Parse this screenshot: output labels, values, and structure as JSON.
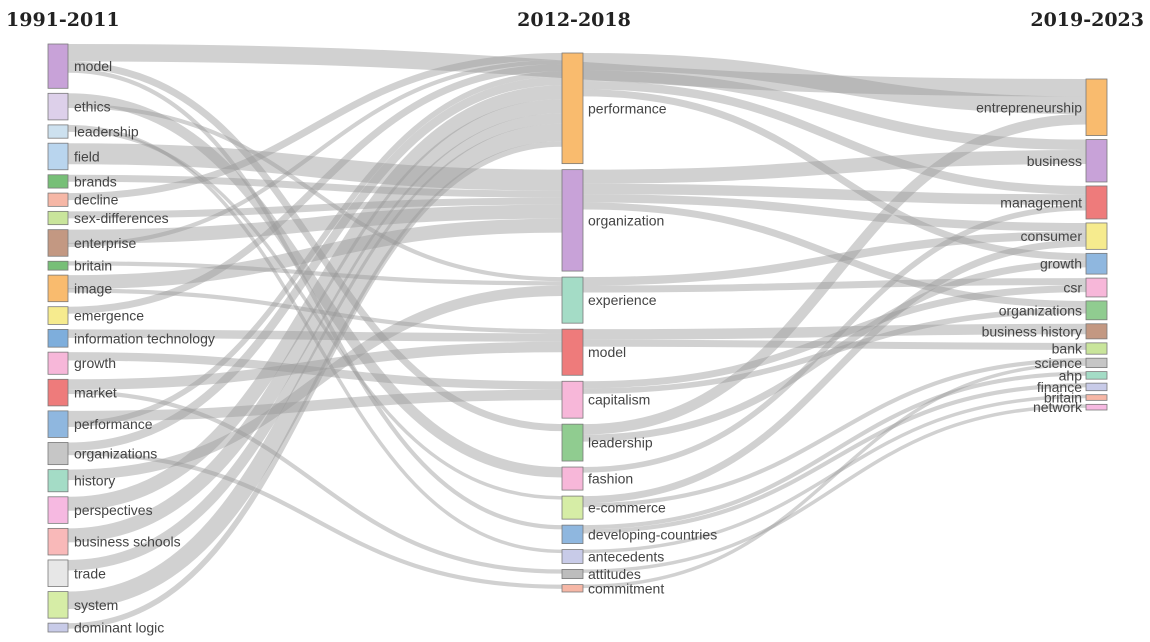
{
  "columns": [
    {
      "title": "1991-2011",
      "nodes": [
        {
          "label": "model",
          "color": "#c8a2d8",
          "weight": 5
        },
        {
          "label": "ethics",
          "color": "#ddd0ea",
          "weight": 3
        },
        {
          "label": "leadership",
          "color": "#cde1ef",
          "weight": 1.5
        },
        {
          "label": "field",
          "color": "#b9d5ee",
          "weight": 3
        },
        {
          "label": "brands",
          "color": "#77bf77",
          "weight": 1.5
        },
        {
          "label": "decline",
          "color": "#f6b7a6",
          "weight": 1.5
        },
        {
          "label": "sex-differences",
          "color": "#c9e59b",
          "weight": 1.5
        },
        {
          "label": "enterprise",
          "color": "#c39882",
          "weight": 3
        },
        {
          "label": "britain",
          "color": "#77bf77",
          "weight": 1
        },
        {
          "label": "image",
          "color": "#f9bb6e",
          "weight": 3
        },
        {
          "label": "emergence",
          "color": "#f6eb8e",
          "weight": 2
        },
        {
          "label": "information technology",
          "color": "#7eaedc",
          "weight": 2
        },
        {
          "label": "growth",
          "color": "#f7b7d9",
          "weight": 2.5
        },
        {
          "label": "market",
          "color": "#ee7b7b",
          "weight": 3
        },
        {
          "label": "performance",
          "color": "#8fb7df",
          "weight": 3
        },
        {
          "label": "organizations",
          "color": "#c6c6c6",
          "weight": 2.5
        },
        {
          "label": "history",
          "color": "#a4dcc6",
          "weight": 2.5
        },
        {
          "label": "perspectives",
          "color": "#f6b9e1",
          "weight": 3
        },
        {
          "label": "business schools",
          "color": "#f9b9b9",
          "weight": 3
        },
        {
          "label": "trade",
          "color": "#e7e7e7",
          "weight": 3
        },
        {
          "label": "system",
          "color": "#d6eda6",
          "weight": 3
        },
        {
          "label": "dominant logic",
          "color": "#c8cbe8",
          "weight": 1
        }
      ]
    },
    {
      "title": "2012-2018",
      "nodes": [
        {
          "label": "performance",
          "color": "#f9bb6e",
          "weight": 12
        },
        {
          "label": "organization",
          "color": "#c8a2d8",
          "weight": 11
        },
        {
          "label": "experience",
          "color": "#a4dcc6",
          "weight": 5
        },
        {
          "label": "model",
          "color": "#ee7b7b",
          "weight": 5
        },
        {
          "label": "capitalism",
          "color": "#f7b7d9",
          "weight": 4
        },
        {
          "label": "leadership",
          "color": "#90cc90",
          "weight": 4
        },
        {
          "label": "fashion",
          "color": "#f7b7d9",
          "weight": 2.5
        },
        {
          "label": "e-commerce",
          "color": "#d6eda6",
          "weight": 2.5
        },
        {
          "label": "developing-countries",
          "color": "#8fb7df",
          "weight": 2
        },
        {
          "label": "antecedents",
          "color": "#c8cbe8",
          "weight": 1.5
        },
        {
          "label": "attitudes",
          "color": "#bdbdbd",
          "weight": 1
        },
        {
          "label": "commitment",
          "color": "#f6b7a6",
          "weight": 0.8
        }
      ]
    },
    {
      "title": "2019-2023",
      "nodes": [
        {
          "label": "entrepreneurship",
          "color": "#f9bb6e",
          "weight": 6
        },
        {
          "label": "business",
          "color": "#c8a2d8",
          "weight": 4.5
        },
        {
          "label": "management",
          "color": "#ee7b7b",
          "weight": 3.5
        },
        {
          "label": "consumer",
          "color": "#f6eb8e",
          "weight": 2.8
        },
        {
          "label": "growth",
          "color": "#8fb7df",
          "weight": 2.2
        },
        {
          "label": "csr",
          "color": "#f7b7d9",
          "weight": 2
        },
        {
          "label": "organizations",
          "color": "#90cc90",
          "weight": 2
        },
        {
          "label": "business history",
          "color": "#c39882",
          "weight": 1.6
        },
        {
          "label": "bank",
          "color": "#c9e59b",
          "weight": 1.2
        },
        {
          "label": "science",
          "color": "#c6c6c6",
          "weight": 1
        },
        {
          "label": "ahp",
          "color": "#a4dcc6",
          "weight": 0.8
        },
        {
          "label": "finance",
          "color": "#c8cbe8",
          "weight": 0.8
        },
        {
          "label": "britain",
          "color": "#f6b7a6",
          "weight": 0.6
        },
        {
          "label": "network",
          "color": "#f6b9e1",
          "weight": 0.6
        }
      ]
    }
  ],
  "links": [
    {
      "source": [
        0,
        0
      ],
      "target": [
        2,
        0
      ],
      "value": 2.5
    },
    {
      "source": [
        0,
        0
      ],
      "target": [
        1,
        5
      ],
      "value": 1
    },
    {
      "source": [
        0,
        0
      ],
      "target": [
        1,
        8
      ],
      "value": 0.6
    },
    {
      "source": [
        0,
        1
      ],
      "target": [
        1,
        6
      ],
      "value": 1.5
    },
    {
      "source": [
        0,
        1
      ],
      "target": [
        1,
        2
      ],
      "value": 0.6
    },
    {
      "source": [
        0,
        2
      ],
      "target": [
        1,
        9
      ],
      "value": 0.5
    },
    {
      "source": [
        0,
        2
      ],
      "target": [
        1,
        7
      ],
      "value": 0.5
    },
    {
      "source": [
        0,
        3
      ],
      "target": [
        1,
        1
      ],
      "value": 3
    },
    {
      "source": [
        0,
        4
      ],
      "target": [
        1,
        1
      ],
      "value": 1
    },
    {
      "source": [
        0,
        5
      ],
      "target": [
        1,
        0
      ],
      "value": 1
    },
    {
      "source": [
        0,
        6
      ],
      "target": [
        1,
        1
      ],
      "value": 1
    },
    {
      "source": [
        0,
        7
      ],
      "target": [
        1,
        1
      ],
      "value": 2
    },
    {
      "source": [
        0,
        7
      ],
      "target": [
        1,
        0
      ],
      "value": 0.6
    },
    {
      "source": [
        0,
        8
      ],
      "target": [
        1,
        2
      ],
      "value": 0.6
    },
    {
      "source": [
        0,
        9
      ],
      "target": [
        1,
        1
      ],
      "value": 2
    },
    {
      "source": [
        0,
        9
      ],
      "target": [
        1,
        3
      ],
      "value": 0.6
    },
    {
      "source": [
        0,
        10
      ],
      "target": [
        1,
        0
      ],
      "value": 1
    },
    {
      "source": [
        0,
        11
      ],
      "target": [
        1,
        3
      ],
      "value": 1.2
    },
    {
      "source": [
        0,
        12
      ],
      "target": [
        1,
        4
      ],
      "value": 1.2
    },
    {
      "source": [
        0,
        13
      ],
      "target": [
        1,
        3
      ],
      "value": 1.5
    },
    {
      "source": [
        0,
        13
      ],
      "target": [
        1,
        10
      ],
      "value": 0.6
    },
    {
      "source": [
        0,
        14
      ],
      "target": [
        1,
        4
      ],
      "value": 1.5
    },
    {
      "source": [
        0,
        14
      ],
      "target": [
        1,
        0
      ],
      "value": 0.8
    },
    {
      "source": [
        0,
        15
      ],
      "target": [
        1,
        0
      ],
      "value": 1.2
    },
    {
      "source": [
        0,
        15
      ],
      "target": [
        1,
        11
      ],
      "value": 0.6
    },
    {
      "source": [
        0,
        16
      ],
      "target": [
        1,
        2
      ],
      "value": 1.5
    },
    {
      "source": [
        0,
        17
      ],
      "target": [
        1,
        0
      ],
      "value": 2
    },
    {
      "source": [
        0,
        18
      ],
      "target": [
        1,
        0
      ],
      "value": 2
    },
    {
      "source": [
        0,
        19
      ],
      "target": [
        1,
        0
      ],
      "value": 1.5
    },
    {
      "source": [
        0,
        20
      ],
      "target": [
        1,
        0
      ],
      "value": 2.5
    },
    {
      "source": [
        0,
        21
      ],
      "target": [
        1,
        0
      ],
      "value": 0.8
    },
    {
      "source": [
        1,
        0
      ],
      "target": [
        2,
        0
      ],
      "value": 2.5
    },
    {
      "source": [
        1,
        0
      ],
      "target": [
        2,
        1
      ],
      "value": 1.5
    },
    {
      "source": [
        1,
        0
      ],
      "target": [
        2,
        2
      ],
      "value": 1.2
    },
    {
      "source": [
        1,
        0
      ],
      "target": [
        2,
        4
      ],
      "value": 1
    },
    {
      "source": [
        1,
        1
      ],
      "target": [
        2,
        1
      ],
      "value": 2
    },
    {
      "source": [
        1,
        1
      ],
      "target": [
        2,
        2
      ],
      "value": 1.5
    },
    {
      "source": [
        1,
        1
      ],
      "target": [
        2,
        3
      ],
      "value": 1.2
    },
    {
      "source": [
        1,
        1
      ],
      "target": [
        2,
        6
      ],
      "value": 1
    },
    {
      "source": [
        1,
        2
      ],
      "target": [
        2,
        3
      ],
      "value": 1.2
    },
    {
      "source": [
        1,
        2
      ],
      "target": [
        2,
        5
      ],
      "value": 1
    },
    {
      "source": [
        1,
        3
      ],
      "target": [
        2,
        7
      ],
      "value": 1.5
    },
    {
      "source": [
        1,
        3
      ],
      "target": [
        2,
        8
      ],
      "value": 1
    },
    {
      "source": [
        1,
        4
      ],
      "target": [
        2,
        5
      ],
      "value": 1
    },
    {
      "source": [
        1,
        4
      ],
      "target": [
        2,
        6
      ],
      "value": 0.8
    },
    {
      "source": [
        1,
        5
      ],
      "target": [
        2,
        0
      ],
      "value": 1.5
    },
    {
      "source": [
        1,
        5
      ],
      "target": [
        2,
        4
      ],
      "value": 1
    },
    {
      "source": [
        1,
        6
      ],
      "target": [
        2,
        2
      ],
      "value": 0.8
    },
    {
      "source": [
        1,
        7
      ],
      "target": [
        2,
        3
      ],
      "value": 1
    },
    {
      "source": [
        1,
        7
      ],
      "target": [
        2,
        9
      ],
      "value": 0.6
    },
    {
      "source": [
        1,
        8
      ],
      "target": [
        2,
        10
      ],
      "value": 0.6
    },
    {
      "source": [
        1,
        8
      ],
      "target": [
        2,
        11
      ],
      "value": 0.6
    },
    {
      "source": [
        1,
        9
      ],
      "target": [
        2,
        12
      ],
      "value": 0.5
    },
    {
      "source": [
        1,
        10
      ],
      "target": [
        2,
        13
      ],
      "value": 0.5
    },
    {
      "source": [
        1,
        11
      ],
      "target": [
        2,
        9
      ],
      "value": 0.5
    }
  ]
}
